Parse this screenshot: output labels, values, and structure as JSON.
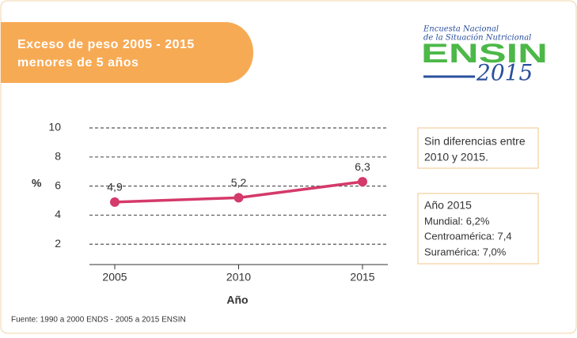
{
  "header": {
    "title_lines": [
      "Exceso de peso 2005 - 2015",
      "menores de 5 años"
    ]
  },
  "logo": {
    "line1": "Encuesta Nacional",
    "line2": "de la Situación Nutricional",
    "name": "ENSIN",
    "year": "2015"
  },
  "chart_data": {
    "type": "line",
    "categories": [
      "2005",
      "2010",
      "2015"
    ],
    "values": [
      4.9,
      5.2,
      6.3
    ],
    "value_labels": [
      "4,9",
      "5,2",
      "6,3"
    ],
    "color": "#d43a6a",
    "y_label": "%",
    "x_label": "Año",
    "ylim": [
      0.6,
      10
    ],
    "yticks": [
      2,
      4,
      6,
      8,
      10
    ],
    "grid": true
  },
  "notes": {
    "box1": [
      "Sin diferencias entre",
      "2010 y 2015."
    ],
    "box2": [
      "Año 2015",
      "Mundial: 6,2%",
      "Centroamérica: 7,4",
      "Suramérica: 7,0%"
    ]
  },
  "source": "Fuente: 1990 a 2000 ENDS - 2005 a 2015 ENSIN"
}
